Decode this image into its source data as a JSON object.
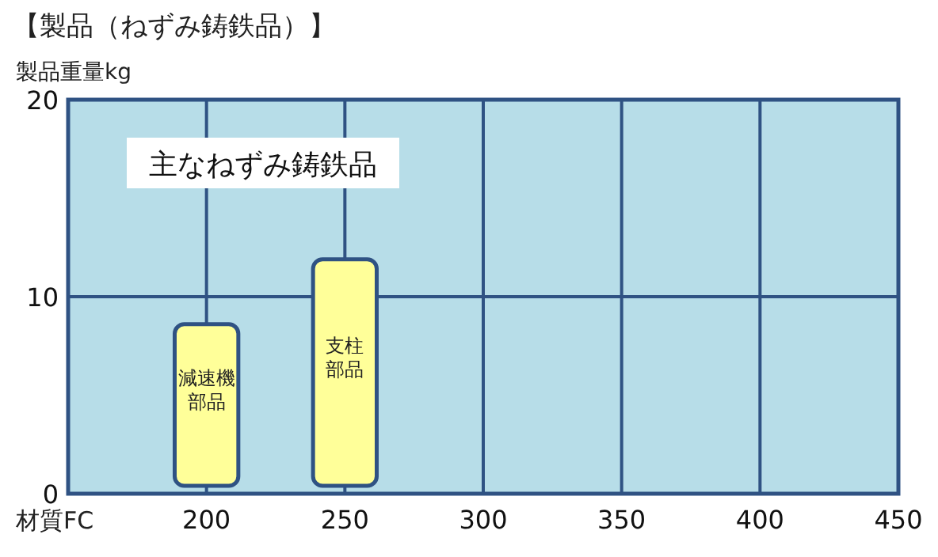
{
  "chart_data": {
    "type": "bar",
    "title": "【製品（ねずみ鋳鉄品）】",
    "ylabel": "製品重量kg",
    "xlabel": "材質FC",
    "x": [
      200,
      250
    ],
    "base": [
      0.4,
      0.4
    ],
    "values": [
      8.2,
      11.5
    ],
    "color": "#ffff99",
    "xlim": [
      150,
      450
    ],
    "xticks": [
      200,
      250,
      300,
      350,
      400,
      450
    ],
    "ylim": [
      0,
      20
    ],
    "yticks": [
      0,
      10,
      20
    ],
    "grid": true,
    "annotations": [
      "主なねずみ鋳鉄品",
      "減速機部品",
      "支柱部品"
    ]
  }
}
